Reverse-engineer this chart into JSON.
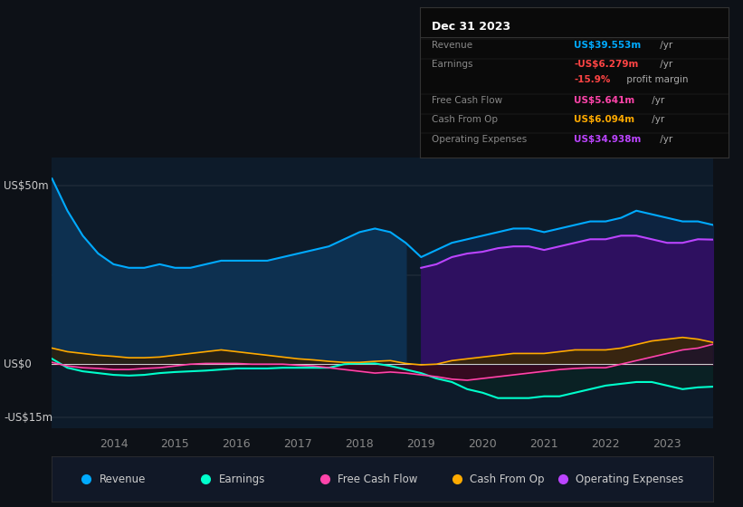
{
  "bg_color": "#0d1117",
  "plot_bg_color": "#0d1b2a",
  "ylabel_top": "US$50m",
  "ylabel_zero": "US$0",
  "ylabel_bottom": "-US$15m",
  "ylim": [
    -18,
    58
  ],
  "info_title": "Dec 31 2023",
  "legend_items": [
    {
      "label": "Revenue",
      "color": "#00aaff"
    },
    {
      "label": "Earnings",
      "color": "#00ffcc"
    },
    {
      "label": "Free Cash Flow",
      "color": "#ff44aa"
    },
    {
      "label": "Cash From Op",
      "color": "#ffaa00"
    },
    {
      "label": "Operating Expenses",
      "color": "#bb44ff"
    }
  ],
  "years": [
    2013.0,
    2013.25,
    2013.5,
    2013.75,
    2014.0,
    2014.25,
    2014.5,
    2014.75,
    2015.0,
    2015.25,
    2015.5,
    2015.75,
    2016.0,
    2016.25,
    2016.5,
    2016.75,
    2017.0,
    2017.25,
    2017.5,
    2017.75,
    2018.0,
    2018.25,
    2018.5,
    2018.75,
    2019.0,
    2019.25,
    2019.5,
    2019.75,
    2020.0,
    2020.25,
    2020.5,
    2020.75,
    2021.0,
    2021.25,
    2021.5,
    2021.75,
    2022.0,
    2022.25,
    2022.5,
    2022.75,
    2023.0,
    2023.25,
    2023.5,
    2023.75
  ],
  "revenue": [
    52,
    43,
    36,
    31,
    28,
    27,
    27,
    28,
    27,
    27,
    28,
    29,
    29,
    29,
    29,
    30,
    31,
    32,
    33,
    35,
    37,
    38,
    37,
    34,
    30,
    32,
    34,
    35,
    36,
    37,
    38,
    38,
    37,
    38,
    39,
    40,
    40,
    41,
    43,
    42,
    41,
    40,
    40,
    39
  ],
  "earnings": [
    1.5,
    -1,
    -2,
    -2.5,
    -3,
    -3.2,
    -3,
    -2.5,
    -2.2,
    -2,
    -1.8,
    -1.5,
    -1.2,
    -1.2,
    -1.2,
    -1,
    -1,
    -1,
    -1,
    0,
    0.2,
    0.2,
    -0.5,
    -1.5,
    -2.5,
    -4,
    -5,
    -7,
    -8,
    -9.5,
    -9.5,
    -9.5,
    -9,
    -9,
    -8,
    -7,
    -6,
    -5.5,
    -5,
    -5,
    -6,
    -7,
    -6.5,
    -6.3
  ],
  "free_cash_flow": [
    0.5,
    -0.5,
    -1,
    -1.2,
    -1.5,
    -1.5,
    -1.2,
    -1,
    -0.5,
    0,
    0.2,
    0.2,
    0.2,
    0,
    0,
    0,
    -0.3,
    -0.5,
    -1,
    -1.5,
    -2,
    -2.5,
    -2.2,
    -2.5,
    -3,
    -3.5,
    -4.2,
    -4.5,
    -4,
    -3.5,
    -3,
    -2.5,
    -2,
    -1.5,
    -1.2,
    -1,
    -1,
    0,
    1,
    2,
    3,
    4,
    4.5,
    5.6
  ],
  "cash_from_op": [
    4.5,
    3.5,
    3,
    2.5,
    2.2,
    1.8,
    1.8,
    2,
    2.5,
    3,
    3.5,
    4,
    3.5,
    3,
    2.5,
    2,
    1.5,
    1.2,
    0.8,
    0.5,
    0.5,
    0.8,
    1,
    0.2,
    -0.2,
    0,
    1,
    1.5,
    2,
    2.5,
    3,
    3,
    3,
    3.5,
    4,
    4,
    4,
    4.5,
    5.5,
    6.5,
    7,
    7.5,
    7,
    6.1
  ],
  "operating_expenses": [
    0,
    0,
    0,
    0,
    0,
    0,
    0,
    0,
    0,
    0,
    0,
    0,
    0,
    0,
    0,
    0,
    0,
    0,
    0,
    0,
    0,
    0,
    0,
    0,
    27,
    28,
    30,
    31,
    31.5,
    32.5,
    33,
    33,
    32,
    33,
    34,
    35,
    35,
    36,
    36,
    35,
    34,
    34,
    35,
    34.9
  ],
  "highlight_start": 2019.0,
  "xtick_positions": [
    2014,
    2015,
    2016,
    2017,
    2018,
    2019,
    2020,
    2021,
    2022,
    2023
  ]
}
